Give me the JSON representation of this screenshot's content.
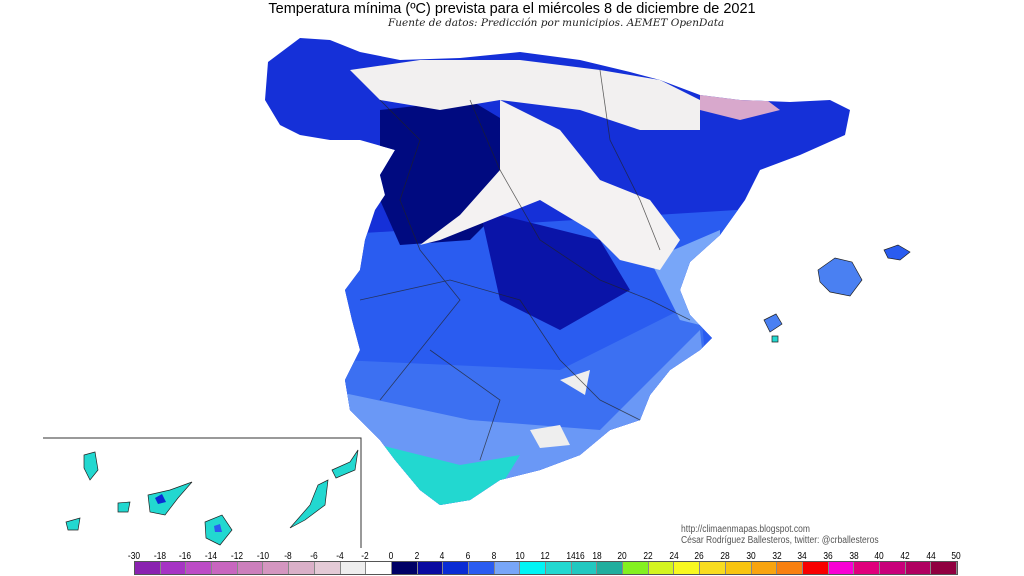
{
  "title": "Temperatura mínima (ºC) prevista para el miércoles 8 de diciembre de 2021",
  "subtitle": "Fuente de datos: Predicción por municipios. AEMET OpenData",
  "credits": {
    "url": "http://climaenmapas.blogspot.com",
    "author": "César Rodríguez Ballesteros, twitter: @crballesteros"
  },
  "legend": {
    "labels": [
      "-30",
      "-18",
      "-16",
      "-14",
      "-12",
      "-10",
      "-8",
      "-6",
      "-4",
      "-2",
      "0",
      "2",
      "4",
      "6",
      "8",
      "10",
      "12",
      "14",
      "16",
      "18",
      "20",
      "22",
      "24",
      "26",
      "28",
      "30",
      "32",
      "34",
      "36",
      "38",
      "40",
      "42",
      "44",
      "50"
    ],
    "colors": [
      "#8a22b0",
      "#a634c4",
      "#bc4cc6",
      "#c866bf",
      "#cc7fbc",
      "#d496c0",
      "#dab0c8",
      "#e4cad6",
      "#eeeeee",
      "#ffffff",
      "#000066",
      "#0a0aa0",
      "#0a2cd4",
      "#2a5cf0",
      "#78a6f8",
      "#00f4f4",
      "#22d8d0",
      "#22c8c0",
      "#20ae9e",
      "#84f020",
      "#d4f420",
      "#f8f820",
      "#f8dc20",
      "#f8c410",
      "#f8a410",
      "#f88010",
      "#f80000",
      "#f800d4",
      "#e0007c",
      "#c8007a",
      "#b00060",
      "#900040",
      "#802020"
    ]
  }
}
